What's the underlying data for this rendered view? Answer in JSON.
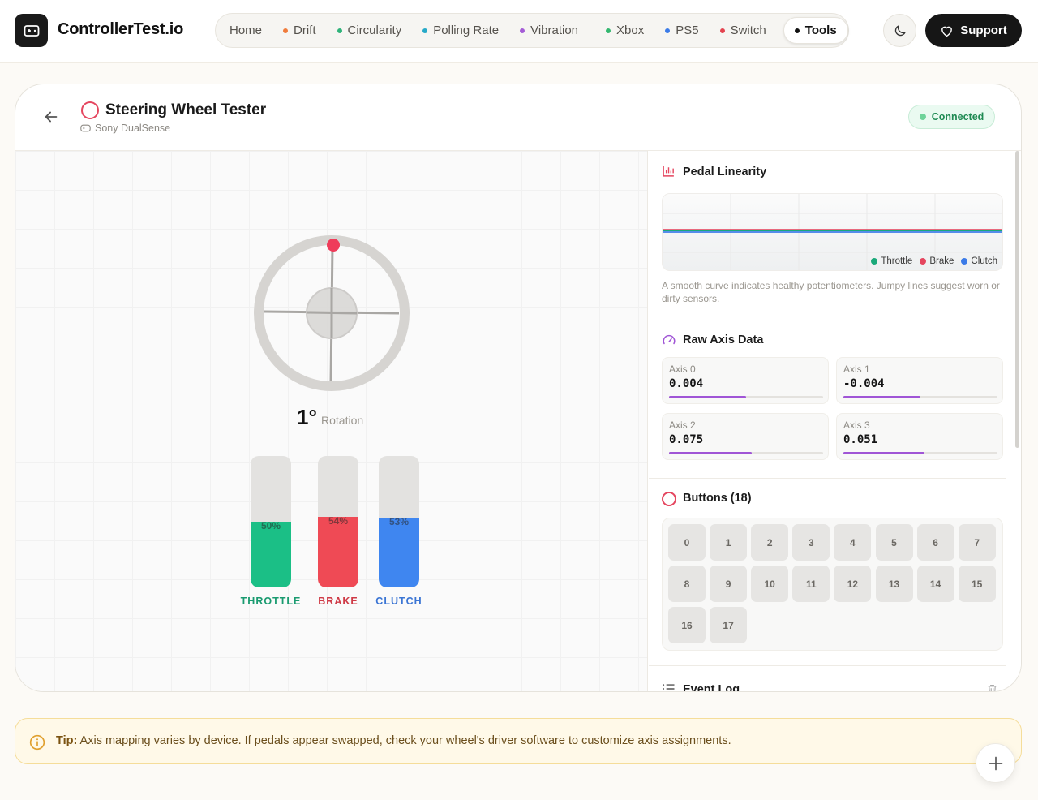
{
  "header": {
    "brand": "ControllerTest.io",
    "nav": [
      {
        "label": "Home",
        "dot": ""
      },
      {
        "label": "Drift",
        "dot": "#f07b3b"
      },
      {
        "label": "Circularity",
        "dot": "#2fb37a"
      },
      {
        "label": "Polling Rate",
        "dot": "#26a9c8"
      },
      {
        "label": "Vibration",
        "dot": "#a45cd6"
      },
      {
        "label": "Xbox",
        "dot": "#33b76f"
      },
      {
        "label": "PS5",
        "dot": "#3b7be8"
      },
      {
        "label": "Switch",
        "dot": "#e4434f"
      },
      {
        "label": "Tools",
        "dot": "#111111"
      }
    ],
    "support_label": "Support"
  },
  "tester": {
    "title": "Steering Wheel Tester",
    "device": "Sony DualSense",
    "status": "Connected",
    "rotation_value": "1°",
    "rotation_label": "Rotation",
    "pedals": [
      {
        "label": "THROTTLE",
        "percent_text": "50%",
        "level": 0.5,
        "color": "#1bbf86",
        "label_color": "#1a9b70"
      },
      {
        "label": "BRAKE",
        "percent_text": "54%",
        "level": 0.54,
        "color": "#ef4a55",
        "label_color": "#cf3a46"
      },
      {
        "label": "CLUTCH",
        "percent_text": "53%",
        "level": 0.53,
        "color": "#3f86f0",
        "label_color": "#3b75d4"
      }
    ]
  },
  "pedal_linearity": {
    "title": "Pedal Linearity",
    "legend": [
      {
        "label": "Throttle",
        "color": "#1aa97a"
      },
      {
        "label": "Brake",
        "color": "#e5465f"
      },
      {
        "label": "Clutch",
        "color": "#3b7be8"
      }
    ],
    "note": "A smooth curve indicates healthy potentiometers. Jumpy lines suggest worn or dirty sensors."
  },
  "raw_axis": {
    "title": "Raw Axis Data",
    "axes": [
      {
        "name": "Axis 0",
        "value": "0.004",
        "level": 0.502
      },
      {
        "name": "Axis 1",
        "value": "-0.004",
        "level": 0.498
      },
      {
        "name": "Axis 2",
        "value": "0.075",
        "level": 0.537
      },
      {
        "name": "Axis 3",
        "value": "0.051",
        "level": 0.525
      }
    ]
  },
  "buttons": {
    "title": "Buttons (18)",
    "items": [
      "0",
      "1",
      "2",
      "3",
      "4",
      "5",
      "6",
      "7",
      "8",
      "9",
      "10",
      "11",
      "12",
      "13",
      "14",
      "15",
      "16",
      "17"
    ]
  },
  "event_log": {
    "title": "Event Log"
  },
  "tip": {
    "label": "Tip:",
    "text": "Axis mapping varies by device. If pedals appear swapped, check your wheel's driver software to customize axis assignments."
  }
}
